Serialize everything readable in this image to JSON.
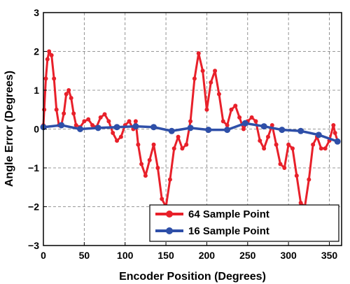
{
  "chart_data": {
    "type": "line",
    "xlabel": "Encoder Position (Degrees)",
    "ylabel": "Angle Error (Degrees)",
    "xlim": [
      0,
      365
    ],
    "ylim": [
      -3,
      3
    ],
    "xticks": [
      0,
      50,
      100,
      150,
      200,
      250,
      300,
      350
    ],
    "yticks": [
      3,
      2,
      1,
      0,
      -1,
      -2,
      -3
    ],
    "ytick_labels": [
      "3",
      "2",
      "1",
      "0",
      "−1",
      "−2",
      "−3"
    ],
    "grid": true,
    "grid_style": "dashed",
    "legend_position": "bottom-right",
    "series": [
      {
        "name": "64 Sample Point",
        "color": "#e8202a",
        "marker": "circle",
        "x": [
          0,
          1,
          3,
          5,
          7,
          10,
          13,
          16,
          19,
          22,
          25,
          28,
          31,
          34,
          37,
          40,
          45,
          50,
          55,
          60,
          65,
          70,
          75,
          80,
          85,
          90,
          95,
          100,
          105,
          110,
          113,
          116,
          120,
          125,
          130,
          135,
          140,
          145,
          150,
          155,
          160,
          165,
          170,
          175,
          180,
          185,
          190,
          195,
          200,
          205,
          210,
          215,
          220,
          225,
          230,
          235,
          240,
          245,
          250,
          255,
          260,
          265,
          270,
          275,
          280,
          285,
          290,
          295,
          300,
          305,
          310,
          315,
          320,
          325,
          330,
          335,
          340,
          345,
          350,
          355,
          357,
          360
        ],
        "y": [
          0.1,
          0.5,
          1.3,
          1.8,
          2.0,
          1.9,
          1.3,
          0.5,
          0.1,
          0.1,
          0.4,
          0.9,
          1.0,
          0.8,
          0.4,
          0.1,
          0.05,
          0.2,
          0.25,
          0.1,
          0.05,
          0.3,
          0.38,
          0.2,
          -0.1,
          -0.3,
          -0.2,
          0.1,
          0.2,
          0.0,
          0.2,
          -0.4,
          -0.9,
          -1.2,
          -0.8,
          -0.4,
          -1.0,
          -1.8,
          -2.0,
          -1.3,
          -0.5,
          -0.2,
          -0.5,
          -0.4,
          0.2,
          1.3,
          1.95,
          1.5,
          0.5,
          1.2,
          1.5,
          0.9,
          0.2,
          0.1,
          0.5,
          0.6,
          0.3,
          0.0,
          0.2,
          0.3,
          0.2,
          -0.3,
          -0.5,
          -0.2,
          0.1,
          -0.4,
          -0.9,
          -1.0,
          -0.4,
          -0.5,
          -1.2,
          -1.9,
          -2.0,
          -1.3,
          -0.4,
          -0.2,
          -0.5,
          -0.5,
          -0.3,
          0.1,
          -0.1,
          -0.3
        ]
      },
      {
        "name": "16 Sample Point",
        "color": "#2e4fa8",
        "marker": "circle",
        "x": [
          0,
          22,
          45,
          67,
          90,
          113,
          135,
          157,
          180,
          202,
          225,
          247,
          270,
          292,
          315,
          337,
          360
        ],
        "y": [
          0.05,
          0.1,
          0.0,
          0.03,
          0.05,
          0.07,
          0.05,
          -0.05,
          0.03,
          -0.02,
          -0.02,
          0.15,
          0.07,
          -0.02,
          -0.05,
          -0.15,
          -0.32
        ]
      }
    ]
  }
}
